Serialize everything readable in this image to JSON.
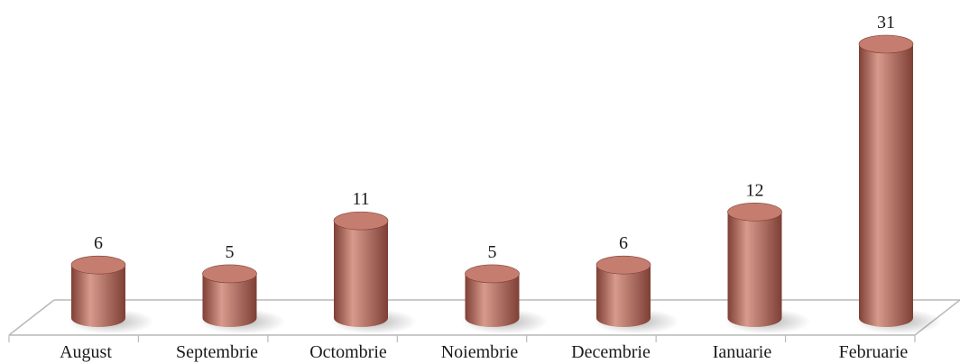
{
  "chart_data": {
    "type": "bar",
    "style": "3d-cylinder",
    "categories": [
      "August",
      "Septembrie",
      "Octombrie",
      "Noiembrie",
      "Decembrie",
      "Ianuarie",
      "Februarie"
    ],
    "values": [
      6,
      5,
      11,
      5,
      6,
      12,
      31
    ],
    "title": "",
    "xlabel": "",
    "ylabel": "",
    "ylim": [
      0,
      31
    ],
    "grid": false,
    "legend": false,
    "data_labels": true,
    "colors": {
      "bar": "#b86e60",
      "bar_dark": "#7e3f35",
      "bar_light": "#d89a8c",
      "bar_top": "#c47d6f",
      "floor_stroke": "#b9b9b9"
    }
  }
}
